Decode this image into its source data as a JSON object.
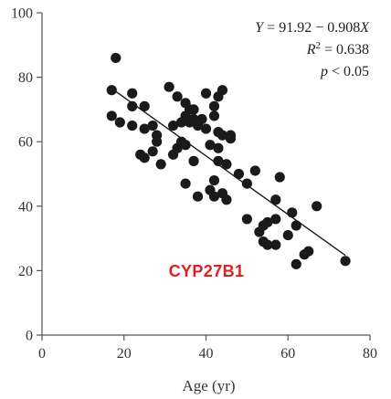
{
  "chart_data": {
    "type": "scatter",
    "title": "",
    "xlabel": "Age (yr)",
    "ylabel": "",
    "xlim": [
      0,
      80
    ],
    "ylim": [
      0,
      100
    ],
    "xticks": [
      0,
      20,
      40,
      60,
      80
    ],
    "yticks": [
      0,
      20,
      40,
      60,
      80,
      100
    ],
    "grid": false,
    "colors": {
      "points": "#1a1a1a",
      "line": "#1a1a1a",
      "label": "#e02020",
      "axis": "#555555"
    },
    "annotation": {
      "equation": {
        "parts": [
          "Y",
          " = 91.92 − 0.908",
          "X"
        ]
      },
      "r_squared": {
        "parts": [
          "R",
          "2",
          " = 0.638"
        ]
      },
      "p_value": {
        "parts": [
          "p",
          " < 0.05"
        ]
      },
      "gene_label": "CYP27B1"
    },
    "regression": {
      "intercept": 91.92,
      "slope": -0.908,
      "x_range": [
        17,
        74
      ]
    },
    "points": [
      [
        18,
        86
      ],
      [
        17,
        76
      ],
      [
        17,
        68
      ],
      [
        19,
        66
      ],
      [
        22,
        75
      ],
      [
        22,
        71
      ],
      [
        22,
        65
      ],
      [
        24,
        56
      ],
      [
        25,
        55
      ],
      [
        25,
        71
      ],
      [
        25,
        64
      ],
      [
        27,
        57
      ],
      [
        27,
        65
      ],
      [
        28,
        62
      ],
      [
        28,
        60
      ],
      [
        29,
        53
      ],
      [
        31,
        77
      ],
      [
        32,
        65
      ],
      [
        32,
        56
      ],
      [
        33,
        74
      ],
      [
        33,
        58
      ],
      [
        34,
        60
      ],
      [
        34,
        66
      ],
      [
        35,
        68
      ],
      [
        35,
        72
      ],
      [
        35,
        59
      ],
      [
        35,
        47
      ],
      [
        36,
        70
      ],
      [
        36,
        66
      ],
      [
        37,
        70
      ],
      [
        37,
        67
      ],
      [
        37,
        54
      ],
      [
        38,
        65
      ],
      [
        38,
        43
      ],
      [
        39,
        67
      ],
      [
        40,
        75
      ],
      [
        40,
        64
      ],
      [
        41,
        59
      ],
      [
        41,
        45
      ],
      [
        42,
        71
      ],
      [
        42,
        68
      ],
      [
        42,
        48
      ],
      [
        42,
        43
      ],
      [
        43,
        74
      ],
      [
        43,
        63
      ],
      [
        43,
        58
      ],
      [
        43,
        54
      ],
      [
        44,
        76
      ],
      [
        44,
        62
      ],
      [
        44,
        44
      ],
      [
        45,
        53
      ],
      [
        45,
        42
      ],
      [
        46,
        62
      ],
      [
        46,
        61
      ],
      [
        48,
        50
      ],
      [
        50,
        47
      ],
      [
        50,
        36
      ],
      [
        52,
        51
      ],
      [
        53,
        32
      ],
      [
        54,
        34
      ],
      [
        54,
        29
      ],
      [
        55,
        28
      ],
      [
        55,
        35
      ],
      [
        57,
        42
      ],
      [
        57,
        36
      ],
      [
        57,
        28
      ],
      [
        58,
        49
      ],
      [
        60,
        31
      ],
      [
        61,
        38
      ],
      [
        62,
        34
      ],
      [
        62,
        22
      ],
      [
        64,
        25
      ],
      [
        65,
        26
      ],
      [
        67,
        40
      ],
      [
        74,
        23
      ]
    ]
  }
}
